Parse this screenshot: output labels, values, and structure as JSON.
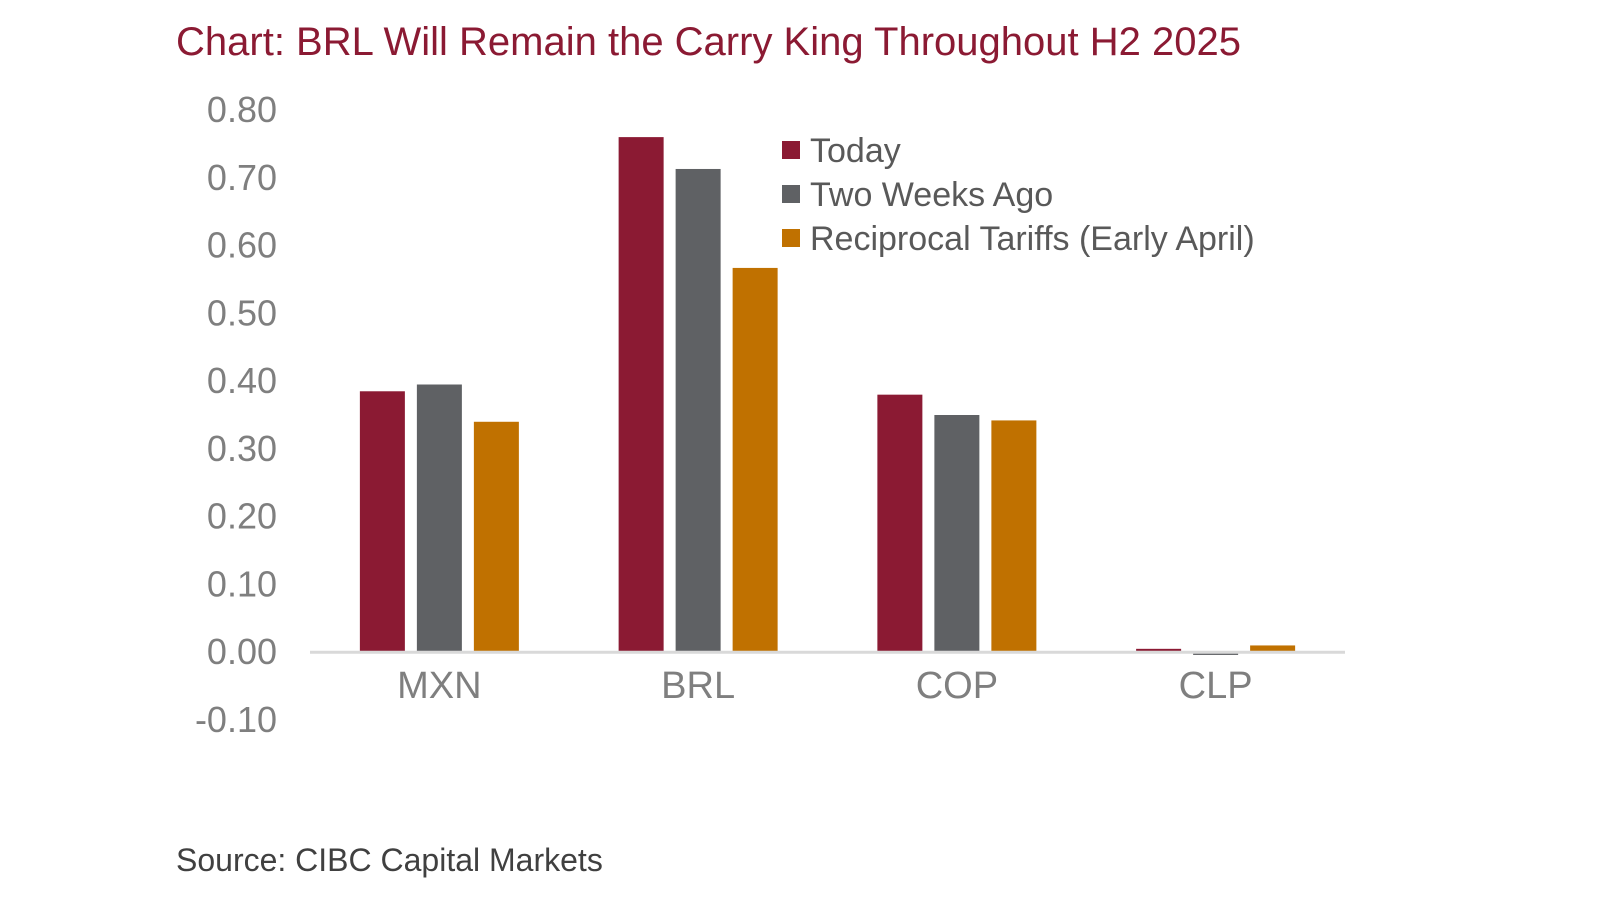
{
  "chart_data": {
    "type": "bar",
    "title": "Chart: BRL Will Remain the Carry King Throughout H2 2025",
    "xlabel": "",
    "ylabel": "",
    "categories": [
      "MXN",
      "BRL",
      "COP",
      "CLP"
    ],
    "series": [
      {
        "name": "Today",
        "color": "#8b1a33",
        "values": [
          0.385,
          0.76,
          0.38,
          0.005
        ]
      },
      {
        "name": "Two Weeks Ago",
        "color": "#5f6164",
        "values": [
          0.395,
          0.713,
          0.35,
          -0.004
        ]
      },
      {
        "name": "Reciprocal Tariffs (Early April)",
        "color": "#c07100",
        "values": [
          0.34,
          0.567,
          0.342,
          0.01
        ]
      }
    ],
    "ylim": [
      -0.1,
      0.8
    ],
    "yticks": [
      "0.80",
      "0.70",
      "0.60",
      "0.50",
      "0.40",
      "0.30",
      "0.20",
      "0.10",
      "0.00",
      "-0.10"
    ],
    "grid": false,
    "legend_position": "top-right"
  },
  "source": "Source: CIBC Capital Markets"
}
